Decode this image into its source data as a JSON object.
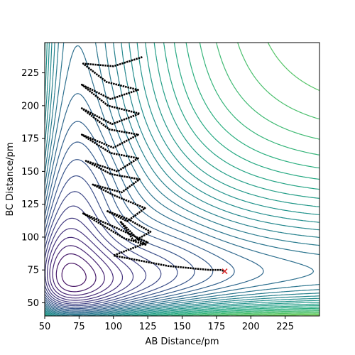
{
  "chart_data": {
    "type": "line",
    "title": "",
    "xlabel": "AB Distance/pm",
    "ylabel": "BC Distance/pm",
    "xlim": [
      50,
      250
    ],
    "ylim": [
      40,
      248
    ],
    "xticks": [
      50,
      75,
      100,
      125,
      150,
      175,
      200,
      225
    ],
    "yticks": [
      50,
      75,
      100,
      125,
      150,
      175,
      200,
      225
    ],
    "contour_colormap": "viridis",
    "contour_levels": 42,
    "trajectory_color": "#000000",
    "endpoint_marker": "x",
    "endpoint_color": "#d62728",
    "series": [
      {
        "x": [
          121,
          100,
          78,
          95,
          118,
          98,
          77,
          96,
          119,
          99,
          77,
          97,
          118,
          100,
          77,
          98,
          118,
          103,
          80,
          98,
          119,
          106,
          85,
          100,
          123,
          110,
          95,
          110,
          127,
          115,
          105,
          118,
          124,
          108,
          78,
          100,
          125,
          115,
          100,
          130,
          140,
          150,
          160,
          170,
          178,
          181
        ],
        "y": [
          237,
          230,
          232,
          218,
          212,
          205,
          216,
          200,
          194,
          186,
          198,
          182,
          178,
          168,
          178,
          164,
          160,
          150,
          158,
          148,
          144,
          134,
          140,
          132,
          122,
          112,
          120,
          114,
          104,
          97,
          112,
          98,
          94,
          99,
          118,
          108,
          96,
          92,
          86,
          80,
          78,
          77,
          76,
          75,
          75,
          74
        ]
      }
    ],
    "endpoint": {
      "x": 181,
      "y": 74
    }
  }
}
